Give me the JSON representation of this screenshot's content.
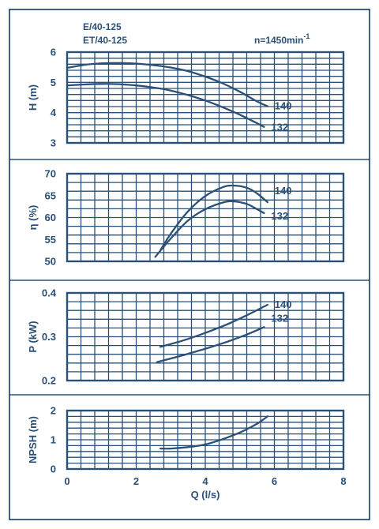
{
  "header": {
    "model_line_1": "E/40-125",
    "model_line_2": "ET/40-125",
    "speed": "n=1450min",
    "speed_exponent": "-1"
  },
  "colors": {
    "frame": "#2a5078",
    "grid": "#2a5078",
    "curve": "#2a5078",
    "text": "#2a5078"
  },
  "chart_data": [
    {
      "type": "line",
      "ylabel": "H (m)",
      "xlim": [
        0,
        8
      ],
      "ylim": [
        3,
        6
      ],
      "x_ticks": [
        0,
        2,
        4,
        6,
        8
      ],
      "y_ticks": [
        3,
        4,
        5,
        6
      ],
      "grid": true,
      "series": [
        {
          "name": "140",
          "x": [
            0,
            0.5,
            1,
            1.5,
            2,
            2.5,
            3,
            3.5,
            4,
            4.5,
            5,
            5.5,
            5.8
          ],
          "y": [
            5.48,
            5.58,
            5.63,
            5.64,
            5.62,
            5.57,
            5.49,
            5.37,
            5.19,
            4.97,
            4.69,
            4.37,
            4.21
          ]
        },
        {
          "name": "132",
          "x": [
            0,
            0.5,
            1,
            1.5,
            2,
            2.5,
            3,
            3.5,
            4,
            4.5,
            5,
            5.5,
            5.7
          ],
          "y": [
            4.9,
            4.93,
            4.95,
            4.94,
            4.9,
            4.83,
            4.73,
            4.58,
            4.4,
            4.18,
            3.93,
            3.65,
            3.53
          ]
        }
      ]
    },
    {
      "type": "line",
      "ylabel": "η (%)",
      "xlim": [
        0,
        8
      ],
      "ylim": [
        50,
        70
      ],
      "x_ticks": [
        0,
        2,
        4,
        6,
        8
      ],
      "y_ticks": [
        50,
        55,
        60,
        65,
        70
      ],
      "grid": true,
      "series": [
        {
          "name": "140",
          "x": [
            2.7,
            3,
            3.5,
            4,
            4.5,
            4.8,
            5.2,
            5.5,
            5.8
          ],
          "y": [
            52.5,
            56.3,
            61.4,
            64.9,
            66.9,
            67.3,
            66.8,
            65.5,
            63.5
          ]
        },
        {
          "name": "132",
          "x": [
            2.55,
            3,
            3.5,
            4,
            4.5,
            4.8,
            5.2,
            5.5,
            5.7
          ],
          "y": [
            51.0,
            55.2,
            59.3,
            61.9,
            63.4,
            63.7,
            63.1,
            61.9,
            61.0
          ]
        }
      ]
    },
    {
      "type": "line",
      "ylabel": "P (kW)",
      "xlim": [
        0,
        8
      ],
      "ylim": [
        0.2,
        0.4
      ],
      "x_ticks": [
        0,
        2,
        4,
        6,
        8
      ],
      "y_ticks": [
        0.2,
        0.3,
        0.4
      ],
      "grid": true,
      "series": [
        {
          "name": "140",
          "x": [
            2.7,
            3.5,
            4.5,
            5.2,
            5.8
          ],
          "y": [
            0.277,
            0.295,
            0.324,
            0.349,
            0.373
          ]
        },
        {
          "name": "132",
          "x": [
            2.6,
            3.5,
            4.5,
            5.2,
            5.7
          ],
          "y": [
            0.242,
            0.261,
            0.285,
            0.305,
            0.322
          ]
        }
      ]
    },
    {
      "type": "line",
      "xlabel": "Q (l/s)",
      "ylabel": "NPSH (m)",
      "xlim": [
        0,
        8
      ],
      "ylim": [
        0,
        2
      ],
      "x_ticks": [
        0,
        2,
        4,
        6,
        8
      ],
      "y_ticks": [
        0,
        1,
        2
      ],
      "grid": true,
      "series": [
        {
          "name": "",
          "x": [
            2.7,
            3,
            3.5,
            4,
            4.5,
            5,
            5.5,
            5.8
          ],
          "y": [
            0.7,
            0.7,
            0.75,
            0.84,
            1.02,
            1.25,
            1.55,
            1.8
          ]
        }
      ]
    }
  ]
}
